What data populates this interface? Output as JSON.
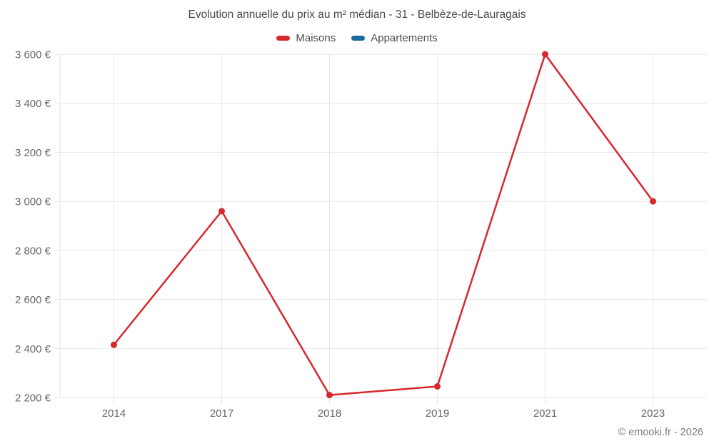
{
  "chart_data": {
    "type": "line",
    "title": "Evolution annuelle du prix au m² médian - 31 - Belbèze-de-Lauragais",
    "categories": [
      "2014",
      "2017",
      "2018",
      "2019",
      "2021",
      "2023"
    ],
    "series": [
      {
        "name": "Maisons",
        "color": "#d7282d",
        "values": [
          2415,
          2960,
          2210,
          2245,
          3600,
          3000
        ]
      },
      {
        "name": "Appartements",
        "color": "#17699e",
        "values": []
      }
    ],
    "xlabel": "",
    "ylabel": "",
    "ylim": [
      2200,
      3600
    ],
    "yticks": [
      {
        "value": 2200,
        "label": "2 200 €"
      },
      {
        "value": 2400,
        "label": "2 400 €"
      },
      {
        "value": 2600,
        "label": "2 600 €"
      },
      {
        "value": 2800,
        "label": "2 800 €"
      },
      {
        "value": 3000,
        "label": "3 000 €"
      },
      {
        "value": 3200,
        "label": "3 200 €"
      },
      {
        "value": 3400,
        "label": "3 400 €"
      },
      {
        "value": 3600,
        "label": "3 600 €"
      }
    ],
    "grid": true,
    "legend_position": "top",
    "layout": {
      "grid_color": "#e6e6e6",
      "axis_text_color": "#666666",
      "title_color": "#4b4b4b",
      "point_radius": 4.5,
      "line_width": 2.5
    }
  },
  "footer": {
    "credit": "© emooki.fr - 2026"
  }
}
